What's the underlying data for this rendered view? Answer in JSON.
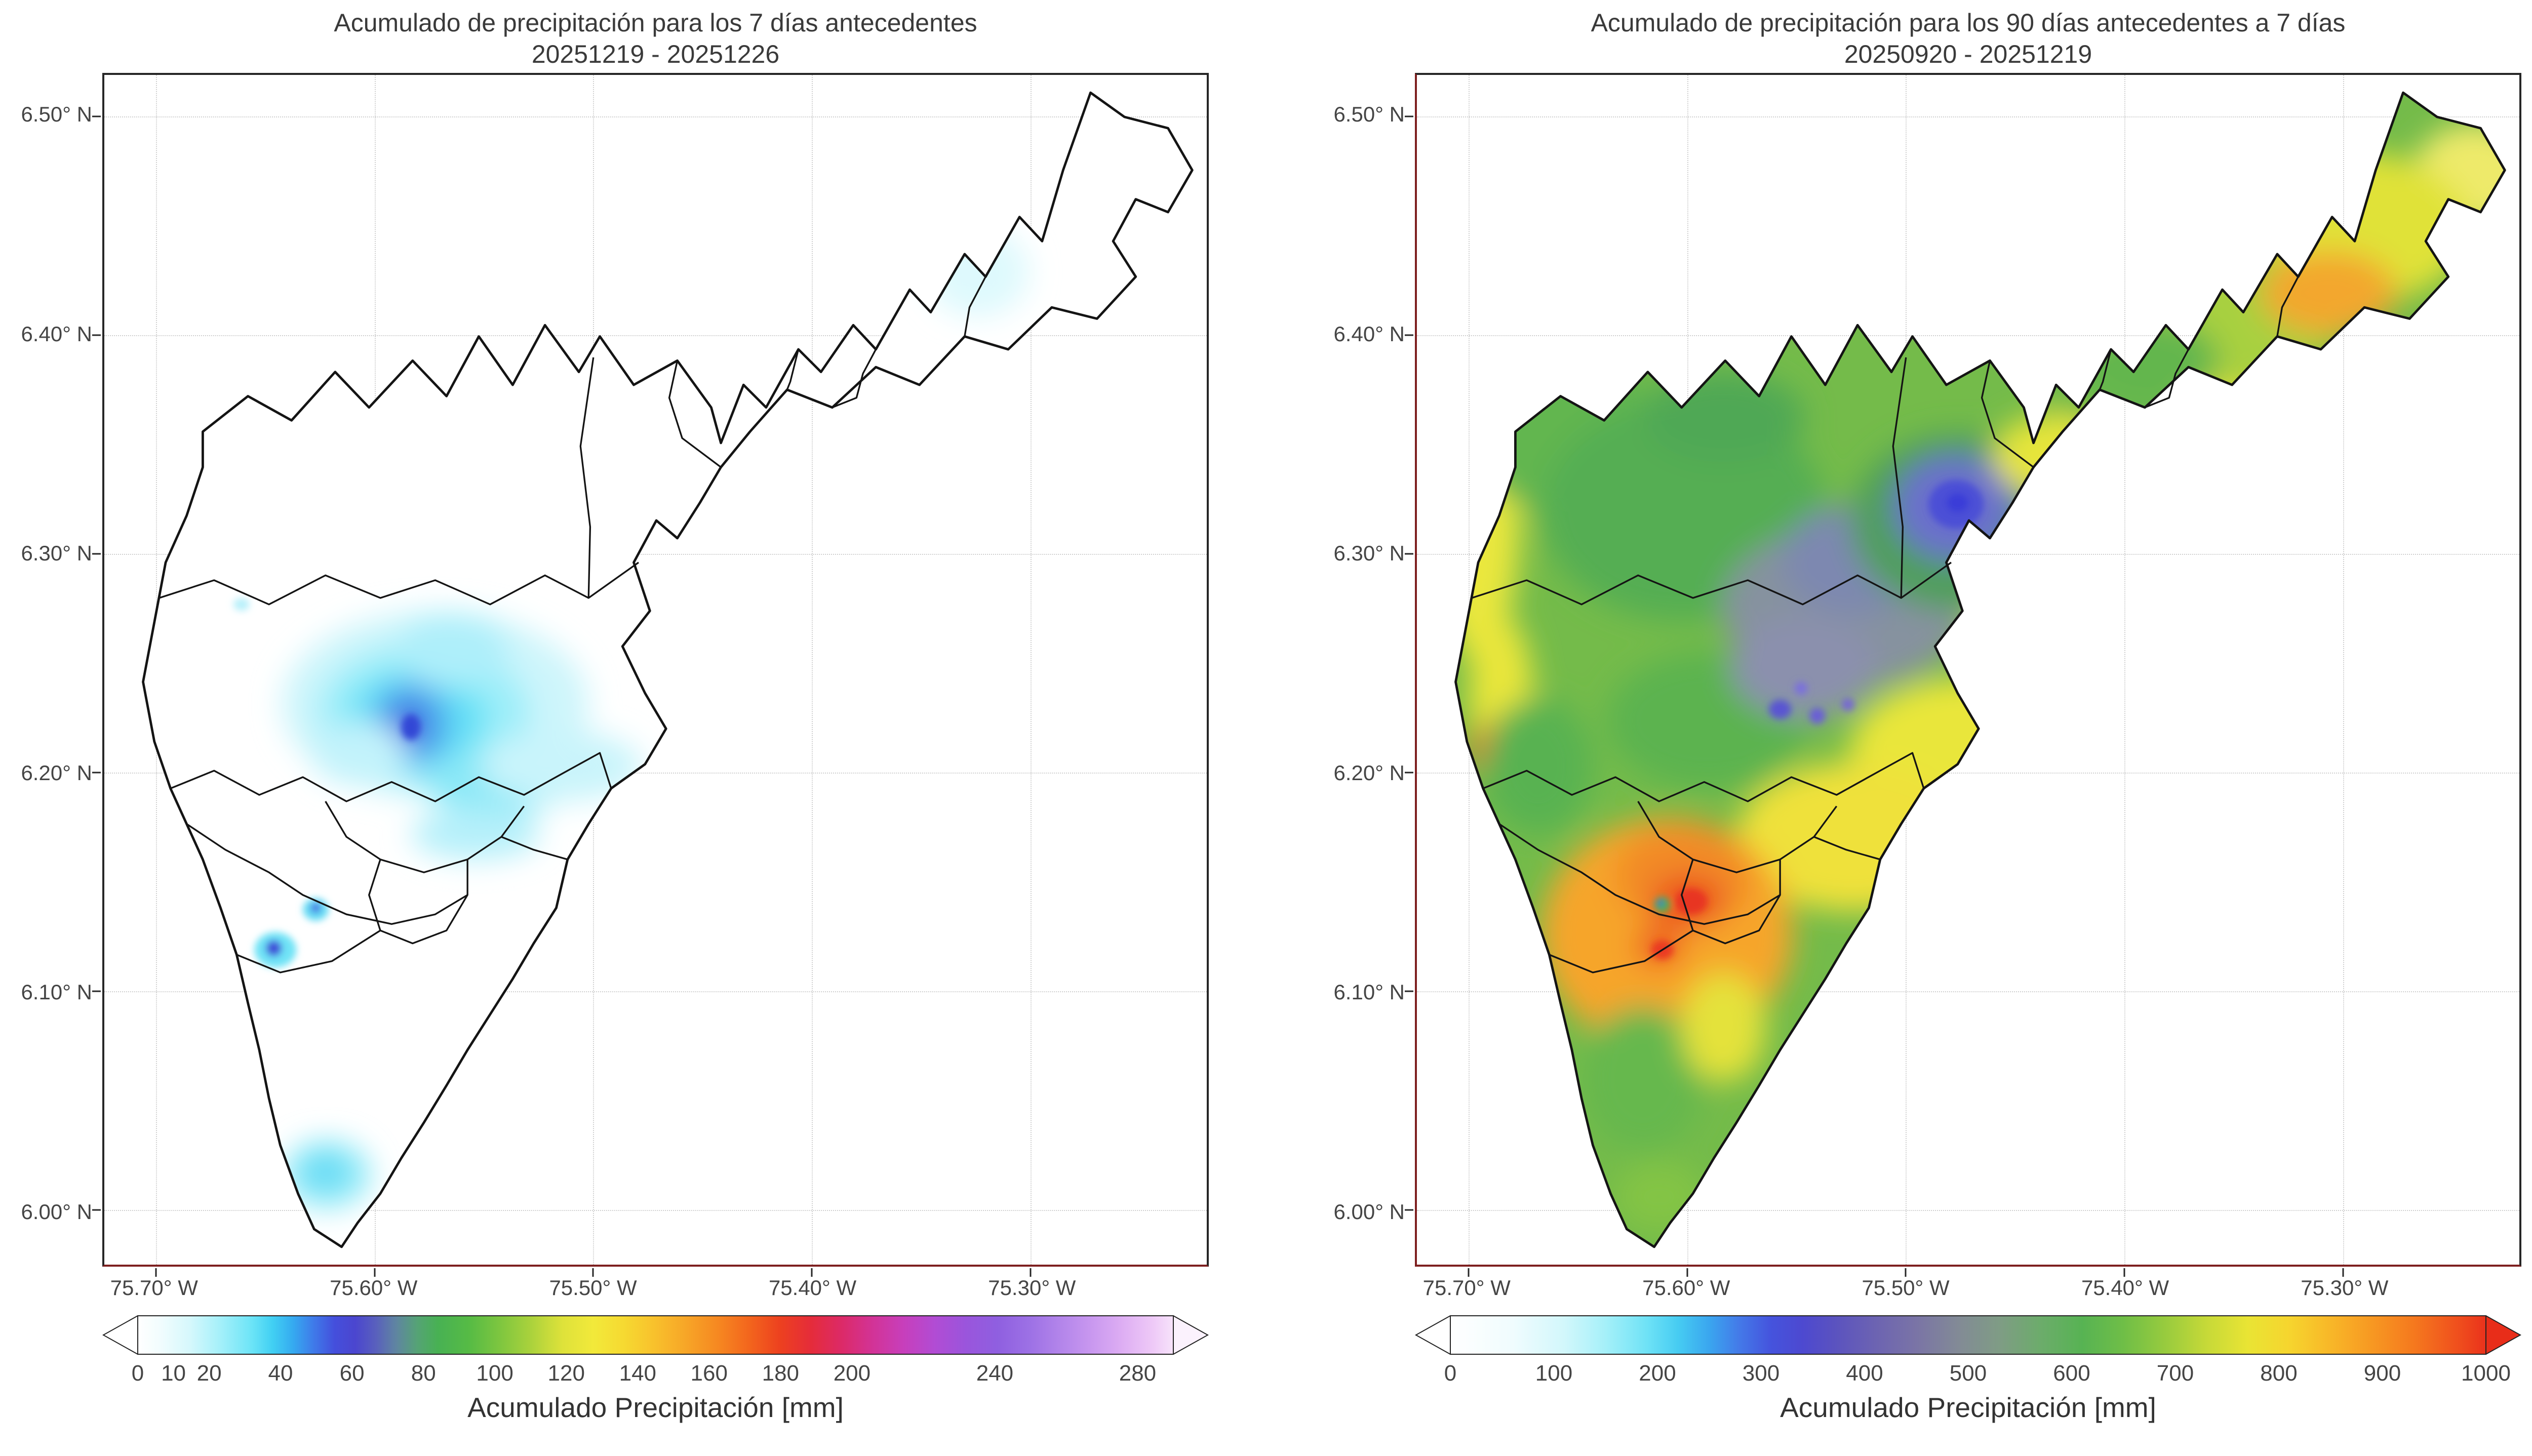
{
  "chart_data": [
    {
      "type": "heatmap",
      "title": "Acumulado de precipitación para los 7 días antecedentes",
      "subtitle": "20251219 - 20251226",
      "grid": true,
      "extent": {
        "lon_west_deg": -75.72,
        "lon_east_deg": -75.22,
        "lat_south_deg": 5.98,
        "lat_north_deg": 6.52
      },
      "x_ticks": [
        {
          "label": "75.70° W",
          "pos": 4.68
        },
        {
          "label": "75.60° W",
          "pos": 24.52
        },
        {
          "label": "75.50° W",
          "pos": 44.35
        },
        {
          "label": "75.40° W",
          "pos": 64.19
        },
        {
          "label": "75.30° W",
          "pos": 84.02
        }
      ],
      "y_ticks": [
        {
          "label": "6.50° N",
          "pos": 3.49
        },
        {
          "label": "6.40° N",
          "pos": 21.88
        },
        {
          "label": "6.30° N",
          "pos": 40.26
        },
        {
          "label": "6.20° N",
          "pos": 58.64
        },
        {
          "label": "6.10° N",
          "pos": 77.02
        },
        {
          "label": "6.00° N",
          "pos": 95.4
        }
      ],
      "colorbar": {
        "label": "Acumulado Precipitación [mm]",
        "orientation": "horizontal",
        "extend": "both",
        "range_mm": [
          0,
          290
        ],
        "ticks": [
          {
            "label": "0",
            "pos": 0
          },
          {
            "label": "10",
            "pos": 3.45
          },
          {
            "label": "20",
            "pos": 6.9
          },
          {
            "label": "40",
            "pos": 13.79
          },
          {
            "label": "60",
            "pos": 20.69
          },
          {
            "label": "80",
            "pos": 27.59
          },
          {
            "label": "100",
            "pos": 34.48
          },
          {
            "label": "120",
            "pos": 41.38
          },
          {
            "label": "140",
            "pos": 48.28
          },
          {
            "label": "160",
            "pos": 55.17
          },
          {
            "label": "180",
            "pos": 62.07
          },
          {
            "label": "200",
            "pos": 68.97
          },
          {
            "label": "240",
            "pos": 82.76
          },
          {
            "label": "280",
            "pos": 96.55
          }
        ],
        "stops": [
          [
            0,
            "#ffffff"
          ],
          [
            2,
            "#f3fdfe"
          ],
          [
            5,
            "#d6f8fc"
          ],
          [
            8,
            "#a4f0fa"
          ],
          [
            11,
            "#6ce4f7"
          ],
          [
            13,
            "#41d0f3"
          ],
          [
            15,
            "#35aaf0"
          ],
          [
            17,
            "#3f7ae9"
          ],
          [
            19,
            "#444fdc"
          ],
          [
            21,
            "#4b46cf"
          ],
          [
            23,
            "#5960bd"
          ],
          [
            25,
            "#5f86a0"
          ],
          [
            27,
            "#55a375"
          ],
          [
            29,
            "#48b153"
          ],
          [
            32,
            "#56bb45"
          ],
          [
            35,
            "#7ec63f"
          ],
          [
            38,
            "#abd23c"
          ],
          [
            41,
            "#dee23a"
          ],
          [
            44,
            "#f2e93a"
          ],
          [
            47,
            "#f6d931"
          ],
          [
            50,
            "#f8c02c"
          ],
          [
            53,
            "#f7a527"
          ],
          [
            56,
            "#f68821"
          ],
          [
            59,
            "#f3661d"
          ],
          [
            62,
            "#ed411f"
          ],
          [
            65,
            "#e52c3a"
          ],
          [
            68,
            "#dc2a68"
          ],
          [
            71,
            "#d23397"
          ],
          [
            74,
            "#c73fbc"
          ],
          [
            77,
            "#b14cd4"
          ],
          [
            80,
            "#9a55dc"
          ],
          [
            83,
            "#8f5fe0"
          ],
          [
            86,
            "#9c70e5"
          ],
          [
            89,
            "#b284ea"
          ],
          [
            92,
            "#c897ef"
          ],
          [
            95,
            "#ddadf3"
          ],
          [
            98,
            "#eec9f7"
          ],
          [
            100,
            "#f7e3fb"
          ]
        ],
        "left_end": "#ffffff",
        "right_end": "#fbf2fd"
      },
      "features": [
        {
          "label": "main rain cell",
          "lon_deg": -75.58,
          "lat_deg": 6.22,
          "peak_mm": 45
        },
        {
          "label": "intense local spot",
          "lon_deg": -75.64,
          "lat_deg": 6.12,
          "peak_mm": 55
        },
        {
          "label": "secondary spot",
          "lon_deg": -75.63,
          "lat_deg": 6.14,
          "peak_mm": 40
        },
        {
          "label": "southern cell",
          "lon_deg": -75.62,
          "lat_deg": 6.01,
          "peak_mm": 22
        },
        {
          "label": "faint northeastern cell",
          "lon_deg": -75.33,
          "lat_deg": 6.43,
          "peak_mm": 10
        },
        {
          "label": "background",
          "peak_mm": 0
        }
      ],
      "field": {
        "base": "#ffffff",
        "soft": [
          [
            205,
            390,
            95,
            58,
            "#cdf5fb"
          ],
          [
            198,
            396,
            66,
            44,
            "#9deef9"
          ],
          [
            193,
            399,
            44,
            30,
            "#63e0f6"
          ],
          [
            190,
            402,
            24,
            26,
            "#4fa9ee"
          ],
          [
            188,
            404,
            12,
            15,
            "#3f5fe0"
          ],
          [
            243,
            438,
            46,
            20,
            "#8ae8f7"
          ],
          [
            283,
            428,
            50,
            22,
            "#c9f4fb"
          ],
          [
            216,
            356,
            34,
            23,
            "#aeeffa"
          ],
          [
            158,
            420,
            30,
            20,
            "#c2f3fb"
          ],
          [
            230,
            470,
            40,
            16,
            "#b5f0fa"
          ],
          [
            138,
            681,
            27,
            21,
            "#90eaf8"
          ],
          [
            137,
            679,
            13,
            11,
            "#5ed9f4"
          ],
          [
            541,
            122,
            32,
            28,
            "#def9fd"
          ]
        ],
        "sharp": [
          [
            190,
            404,
            6,
            8,
            "#3347d6"
          ],
          [
            106,
            542,
            13,
            11,
            "#6fe3f6"
          ],
          [
            105,
            541,
            5,
            5,
            "#3f4ed8"
          ],
          [
            131,
            517,
            8,
            7,
            "#66dcf4"
          ],
          [
            131,
            516,
            3,
            3,
            "#4a5fe0"
          ],
          [
            85,
            328,
            5,
            4,
            "#b8f0fa"
          ]
        ]
      }
    },
    {
      "type": "heatmap",
      "title": "Acumulado de precipitación para los 90 días antecedentes a 7 días",
      "subtitle": "20250920 - 20251219",
      "grid": true,
      "extent": {
        "lon_west_deg": -75.72,
        "lon_east_deg": -75.22,
        "lat_south_deg": 5.98,
        "lat_north_deg": 6.52
      },
      "x_ticks": [
        {
          "label": "75.70° W",
          "pos": 4.68
        },
        {
          "label": "75.60° W",
          "pos": 24.52
        },
        {
          "label": "75.50° W",
          "pos": 44.35
        },
        {
          "label": "75.40° W",
          "pos": 64.19
        },
        {
          "label": "75.30° W",
          "pos": 84.02
        }
      ],
      "y_ticks": [
        {
          "label": "6.50° N",
          "pos": 3.49
        },
        {
          "label": "6.40° N",
          "pos": 21.88
        },
        {
          "label": "6.30° N",
          "pos": 40.26
        },
        {
          "label": "6.20° N",
          "pos": 58.64
        },
        {
          "label": "6.10° N",
          "pos": 77.02
        },
        {
          "label": "6.00° N",
          "pos": 95.4
        }
      ],
      "colorbar": {
        "label": "Acumulado Precipitación [mm]",
        "orientation": "horizontal",
        "extend": "both",
        "range_mm": [
          0,
          1000
        ],
        "ticks": [
          {
            "label": "0",
            "pos": 0
          },
          {
            "label": "100",
            "pos": 10
          },
          {
            "label": "200",
            "pos": 20
          },
          {
            "label": "300",
            "pos": 30
          },
          {
            "label": "400",
            "pos": 40
          },
          {
            "label": "500",
            "pos": 50
          },
          {
            "label": "600",
            "pos": 60
          },
          {
            "label": "700",
            "pos": 70
          },
          {
            "label": "800",
            "pos": 80
          },
          {
            "label": "900",
            "pos": 90
          },
          {
            "label": "1000",
            "pos": 100
          }
        ],
        "stops": [
          [
            0,
            "#ffffff"
          ],
          [
            6,
            "#f0fcfe"
          ],
          [
            11,
            "#d2f7fb"
          ],
          [
            15,
            "#a5f0f9"
          ],
          [
            19,
            "#6ee2f6"
          ],
          [
            22,
            "#46ccf2"
          ],
          [
            25,
            "#3aa6ef"
          ],
          [
            28,
            "#4478e8"
          ],
          [
            31,
            "#4553dd"
          ],
          [
            34,
            "#4d49d0"
          ],
          [
            37,
            "#5a52c0"
          ],
          [
            41,
            "#6c63b2"
          ],
          [
            45,
            "#7a74a6"
          ],
          [
            49,
            "#828a96"
          ],
          [
            53,
            "#7f9c85"
          ],
          [
            57,
            "#6cac6b"
          ],
          [
            61,
            "#57b353"
          ],
          [
            65,
            "#6fbe47"
          ],
          [
            69,
            "#97cb3e"
          ],
          [
            73,
            "#c6d938"
          ],
          [
            77,
            "#e9e434"
          ],
          [
            81,
            "#f6d52e"
          ],
          [
            85,
            "#f8b728"
          ],
          [
            89,
            "#f79822"
          ],
          [
            93,
            "#f5791e"
          ],
          [
            97,
            "#f0521d"
          ],
          [
            100,
            "#ea321c"
          ]
        ],
        "left_end": "#ffffff",
        "right_end": "#e82d19"
      },
      "features": [
        {
          "label": "valley minimum (blue)",
          "lon_deg": -75.47,
          "lat_deg": 6.38,
          "approx_mm": 300
        },
        {
          "label": "central low (gray)",
          "lon_deg": -75.53,
          "lat_deg": 6.28,
          "approx_mm": 470
        },
        {
          "label": "local minima dots",
          "lon_deg": -75.56,
          "lat_deg": 6.25,
          "approx_mm": 320
        },
        {
          "label": "surrounding hills (green)",
          "approx_mm": 600
        },
        {
          "label": "western rim (yellow)",
          "lon_deg": -75.7,
          "lat_deg": 6.33,
          "approx_mm": 730
        },
        {
          "label": "northeastern patch (orange)",
          "lon_deg": -75.34,
          "lat_deg": 6.42,
          "approx_mm": 840
        },
        {
          "label": "southwestern maximum (red)",
          "lon_deg": -75.6,
          "lat_deg": 6.11,
          "approx_mm": 980
        }
      ],
      "field": {
        "base": "#74bb4a",
        "soft": [
          [
            38,
            270,
            26,
            95,
            "#eae73c"
          ],
          [
            52,
            385,
            20,
            50,
            "#e9e63a"
          ],
          [
            70,
            205,
            24,
            20,
            "#e4e43a"
          ],
          [
            655,
            62,
            38,
            32,
            "#eeea6a"
          ],
          [
            575,
            95,
            78,
            48,
            "#e0e238"
          ],
          [
            490,
            148,
            88,
            45,
            "#a8d040"
          ],
          [
            470,
            205,
            70,
            16,
            "#dfe038"
          ],
          [
            95,
            225,
            62,
            48,
            "#62b64f"
          ],
          [
            165,
            270,
            88,
            68,
            "#54ae52"
          ],
          [
            190,
            212,
            50,
            28,
            "#50a855"
          ],
          [
            180,
            400,
            62,
            42,
            "#5cb350"
          ],
          [
            435,
            195,
            45,
            35,
            "#6cb94c"
          ],
          [
            455,
            178,
            42,
            28,
            "#63b64e"
          ],
          [
            370,
            345,
            26,
            50,
            "#d8e03c"
          ],
          [
            340,
            420,
            72,
            46,
            "#e9e63a"
          ],
          [
            270,
            472,
            72,
            46,
            "#efe13a"
          ],
          [
            155,
            532,
            78,
            72,
            "#f6a52c"
          ],
          [
            165,
            497,
            42,
            32,
            "#f28a26"
          ],
          [
            168,
            512,
            22,
            16,
            "#ec4f22"
          ],
          [
            150,
            540,
            15,
            12,
            "#ee5a24"
          ],
          [
            48,
            418,
            15,
            17,
            "#ee7426"
          ],
          [
            75,
            428,
            34,
            42,
            "#58b251"
          ],
          [
            140,
            622,
            38,
            45,
            "#66b84e"
          ],
          [
            190,
            590,
            26,
            34,
            "#e4e23a"
          ],
          [
            150,
            695,
            28,
            22,
            "#83c444"
          ],
          [
            265,
            330,
            76,
            50,
            "#86929f"
          ],
          [
            240,
            367,
            46,
            32,
            "#8b90ad"
          ],
          [
            272,
            300,
            46,
            34,
            "#7d88b0"
          ],
          [
            335,
            277,
            66,
            55,
            "#4f9f5a"
          ],
          [
            333,
            268,
            38,
            33,
            "#6a70cc"
          ],
          [
            395,
            236,
            38,
            26,
            "#e6e53b"
          ],
          [
            565,
            135,
            42,
            26,
            "#f3a72d"
          ]
        ],
        "sharp": [
          [
            334,
            266,
            17,
            15,
            "#4b50d6"
          ],
          [
            335,
            265,
            7,
            6,
            "#3a3ed8"
          ],
          [
            225,
            393,
            7,
            6,
            "#5a55d2"
          ],
          [
            248,
            397,
            5,
            5,
            "#6a5fd6"
          ],
          [
            267,
            390,
            4,
            4,
            "#7668d4"
          ],
          [
            238,
            380,
            4,
            4,
            "#7a70dd"
          ],
          [
            170,
            512,
            10,
            8,
            "#e83420"
          ],
          [
            152,
            542,
            7,
            6,
            "#ea3a20"
          ],
          [
            152,
            514,
            5,
            5,
            "#49b14c"
          ],
          [
            151,
            513,
            2,
            2,
            "#4a5fd8"
          ]
        ]
      }
    }
  ]
}
